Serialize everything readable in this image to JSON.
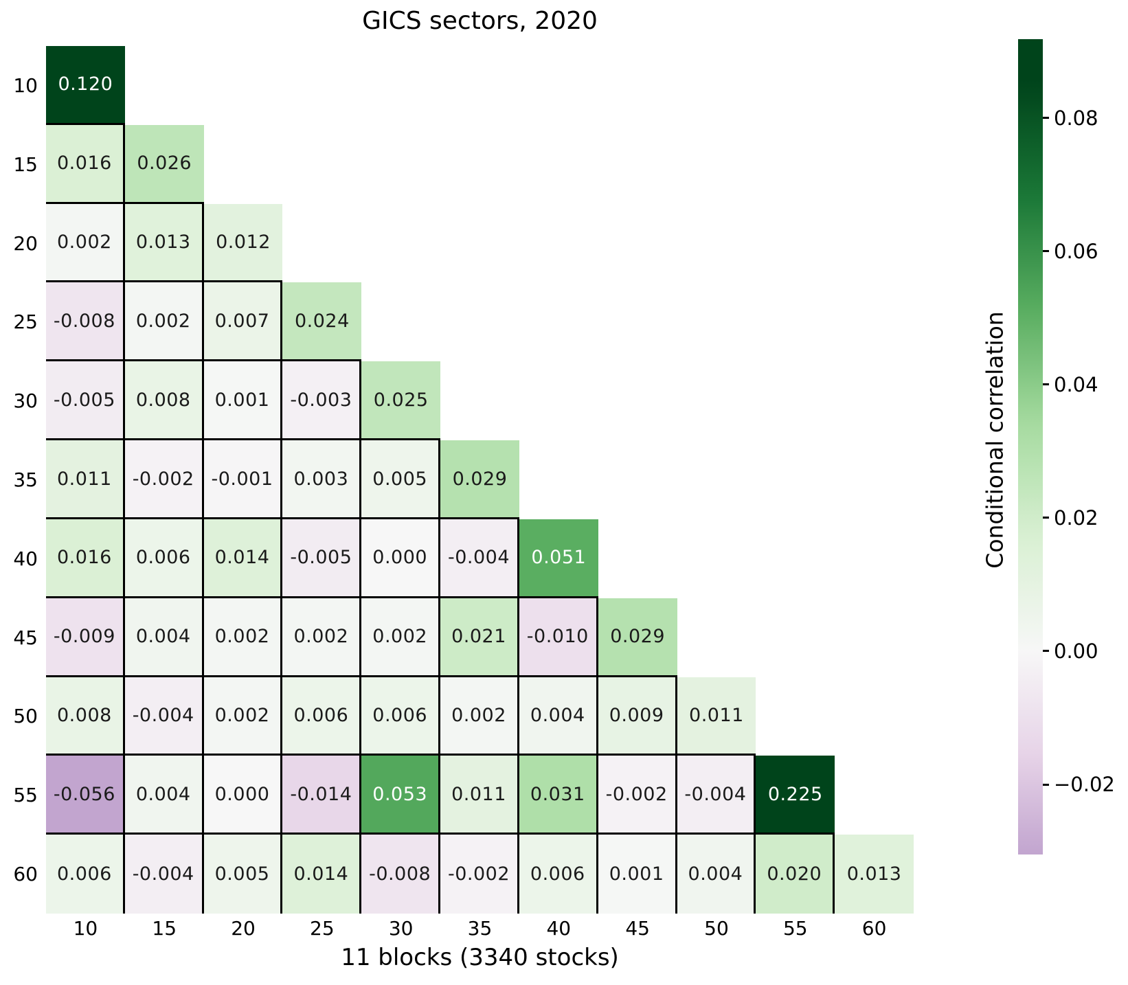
{
  "title": "GICS sectors, 2020",
  "x_axis_label": "11 blocks (3340 stocks)",
  "colorbar": {
    "label": "Conditional correlation",
    "ticks": [
      {
        "label": "0.08",
        "value": 0.08
      },
      {
        "label": "0.06",
        "value": 0.06
      },
      {
        "label": "0.04",
        "value": 0.04
      },
      {
        "label": "0.02",
        "value": 0.02
      },
      {
        "label": "0.00",
        "value": 0.0
      },
      {
        "label": "−0.02",
        "value": -0.02
      }
    ],
    "vmin": -0.0305,
    "vmax": 0.0918
  },
  "colors": {
    "grid_line": "#000000",
    "darkest_green": "#00441b",
    "mid_green": "#5aae61",
    "light_green": "#d9f0d3",
    "white_center": "#f7f7f7",
    "light_purple": "#e7d4e8",
    "deep_purple": "#c2a5cf",
    "annotation_dark": "#1a1a1a",
    "annotation_light": "#ffffff"
  },
  "chart_data": {
    "type": "heatmap",
    "shape": "lower-triangular",
    "title": "GICS sectors, 2020",
    "xlabel": "11 blocks (3340 stocks)",
    "colorbar_label": "Conditional correlation",
    "x_categories": [
      "10",
      "15",
      "20",
      "25",
      "30",
      "35",
      "40",
      "45",
      "50",
      "55",
      "60"
    ],
    "y_categories": [
      "10",
      "15",
      "20",
      "25",
      "30",
      "35",
      "40",
      "45",
      "50",
      "55",
      "60"
    ],
    "colorbar_tick_labels": [
      "0.08",
      "0.06",
      "0.04",
      "0.02",
      "0.00",
      "−0.02"
    ],
    "color_scale": {
      "vmin": -0.0305,
      "vmax": 0.0918,
      "palette": "purple-white-green (PRGn-like)"
    },
    "white_text_threshold": 0.05,
    "rows": [
      {
        "y": "10",
        "values": [
          "0.120"
        ]
      },
      {
        "y": "15",
        "values": [
          "0.016",
          "0.026"
        ]
      },
      {
        "y": "20",
        "values": [
          "0.002",
          "0.013",
          "0.012"
        ]
      },
      {
        "y": "25",
        "values": [
          "-0.008",
          "0.002",
          "0.007",
          "0.024"
        ]
      },
      {
        "y": "30",
        "values": [
          "-0.005",
          "0.008",
          "0.001",
          "-0.003",
          "0.025"
        ]
      },
      {
        "y": "35",
        "values": [
          "0.011",
          "-0.002",
          "-0.001",
          "0.003",
          "0.005",
          "0.029"
        ]
      },
      {
        "y": "40",
        "values": [
          "0.016",
          "0.006",
          "0.014",
          "-0.005",
          "0.000",
          "-0.004",
          "0.051"
        ]
      },
      {
        "y": "45",
        "values": [
          "-0.009",
          "0.004",
          "0.002",
          "0.002",
          "0.002",
          "0.021",
          "-0.010",
          "0.029"
        ]
      },
      {
        "y": "50",
        "values": [
          "0.008",
          "-0.004",
          "0.002",
          "0.006",
          "0.006",
          "0.002",
          "0.004",
          "0.009",
          "0.011"
        ]
      },
      {
        "y": "55",
        "values": [
          "-0.056",
          "0.004",
          "0.000",
          "-0.014",
          "0.053",
          "0.011",
          "0.031",
          "-0.002",
          "-0.004",
          "0.225"
        ]
      },
      {
        "y": "60",
        "values": [
          "0.006",
          "-0.004",
          "0.005",
          "0.014",
          "-0.008",
          "-0.002",
          "0.006",
          "0.001",
          "0.004",
          "0.020",
          "0.013"
        ]
      }
    ]
  }
}
